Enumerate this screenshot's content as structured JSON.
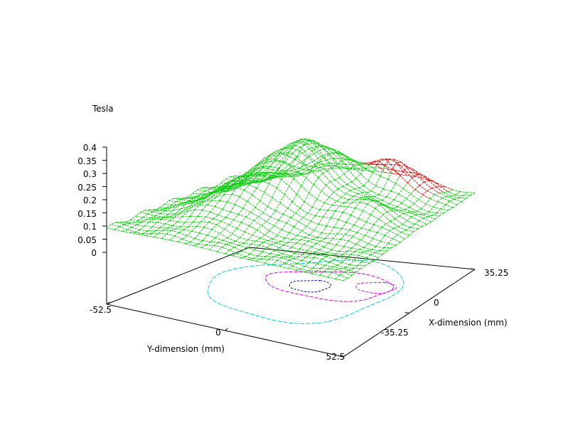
{
  "chart_data": {
    "type": "surface",
    "zlabel": "Tesla",
    "xlabel": "X-dimension (mm)",
    "ylabel": "Y-dimension (mm)",
    "x_ticks": [
      "35.25",
      "0",
      "-35.25"
    ],
    "y_ticks": [
      "-52.5",
      "0",
      "52.5"
    ],
    "z_ticks": [
      "0.4",
      "0.35",
      "0.3",
      "0.25",
      "0.2",
      "0.15",
      "0.1",
      "0.05",
      "0"
    ],
    "xlim": [
      -35.25,
      35.25
    ],
    "ylim": [
      -52.5,
      52.5
    ],
    "zlim": [
      0,
      0.4
    ],
    "colors": {
      "surface": "#00cc00",
      "surface_highlight": "#e00000",
      "contour_outer": "#00ccdd",
      "contour_middle": "#dd00dd",
      "contour_inner": "#0000aa"
    }
  }
}
